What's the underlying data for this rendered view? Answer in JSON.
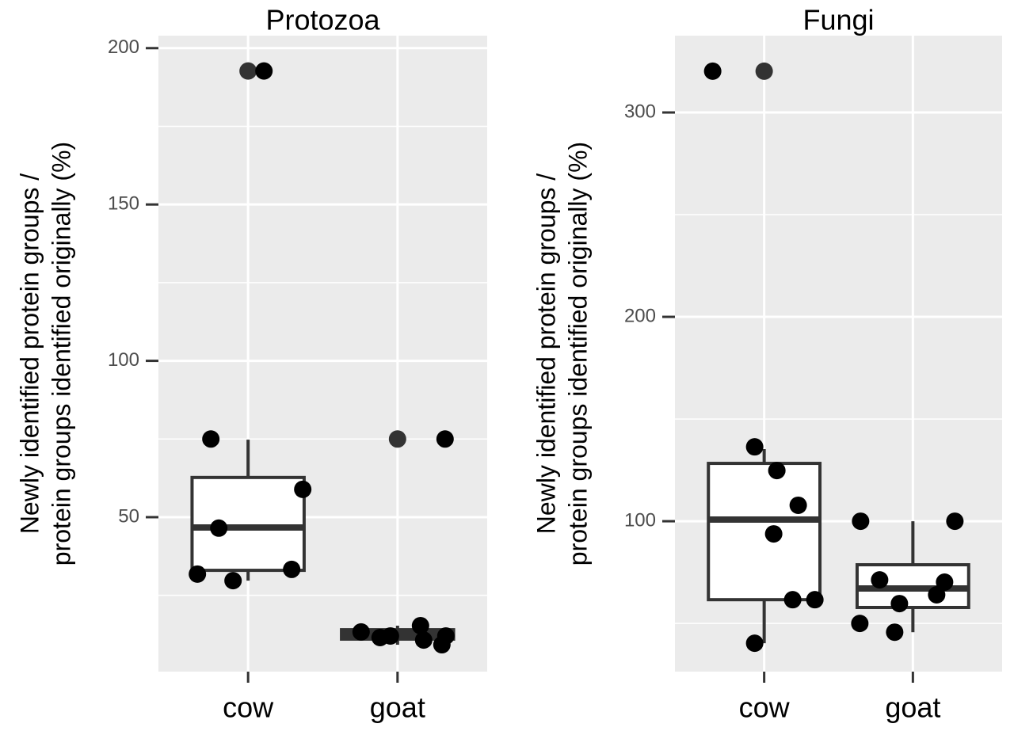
{
  "chart_data": [
    {
      "type": "box",
      "title": "Protozoa",
      "ylabel": [
        "Newly identified protein groups /",
        "protein groups identified originally (%)"
      ],
      "categories": [
        "cow",
        "goat"
      ],
      "boxes": [
        {
          "low": 29.7,
          "q1": 33.0,
          "median": 46.7,
          "q3": 62.7,
          "high": 74.8,
          "outliers": [
            192.7
          ],
          "points": [
            75,
            58.9,
            46.5,
            31.8,
            33.3,
            29.7,
            192.7
          ]
        },
        {
          "low": 9.2,
          "q1": 11.0,
          "median": 12.5,
          "q3": 14.0,
          "high": 15.3,
          "outliers": [
            75
          ],
          "points": [
            75,
            13.3,
            11.5,
            12.0,
            15.3,
            10.7,
            9.2,
            12.0
          ]
        }
      ],
      "ylim": [
        0.6,
        204
      ],
      "yticks": [
        50,
        100,
        150,
        200
      ],
      "yminorticks": [
        25,
        75,
        125,
        175
      ],
      "grid": true
    },
    {
      "type": "box",
      "title": "Fungi",
      "ylabel": [
        "Newly identified protein groups /",
        "protein groups identified originally (%)"
      ],
      "categories": [
        "cow",
        "goat"
      ],
      "boxes": [
        {
          "low": 40.3,
          "q1": 61.6,
          "median": 100.8,
          "q3": 128.3,
          "high": 135.3,
          "outliers": [
            320.2
          ],
          "points": [
            320.2,
            136.4,
            124.8,
            107.8,
            93.8,
            61.6,
            61.6,
            40.3
          ]
        },
        {
          "low": 45.7,
          "q1": 57.8,
          "median": 67.1,
          "q3": 78.7,
          "high": 100,
          "outliers": [],
          "points": [
            100,
            100,
            71.3,
            70.2,
            64.0,
            59.7,
            50.0,
            45.7
          ]
        }
      ],
      "ylim": [
        26.4,
        337.6
      ],
      "yticks": [
        100,
        200,
        300
      ],
      "yminorticks": [
        50,
        150,
        250
      ],
      "grid": true
    }
  ]
}
